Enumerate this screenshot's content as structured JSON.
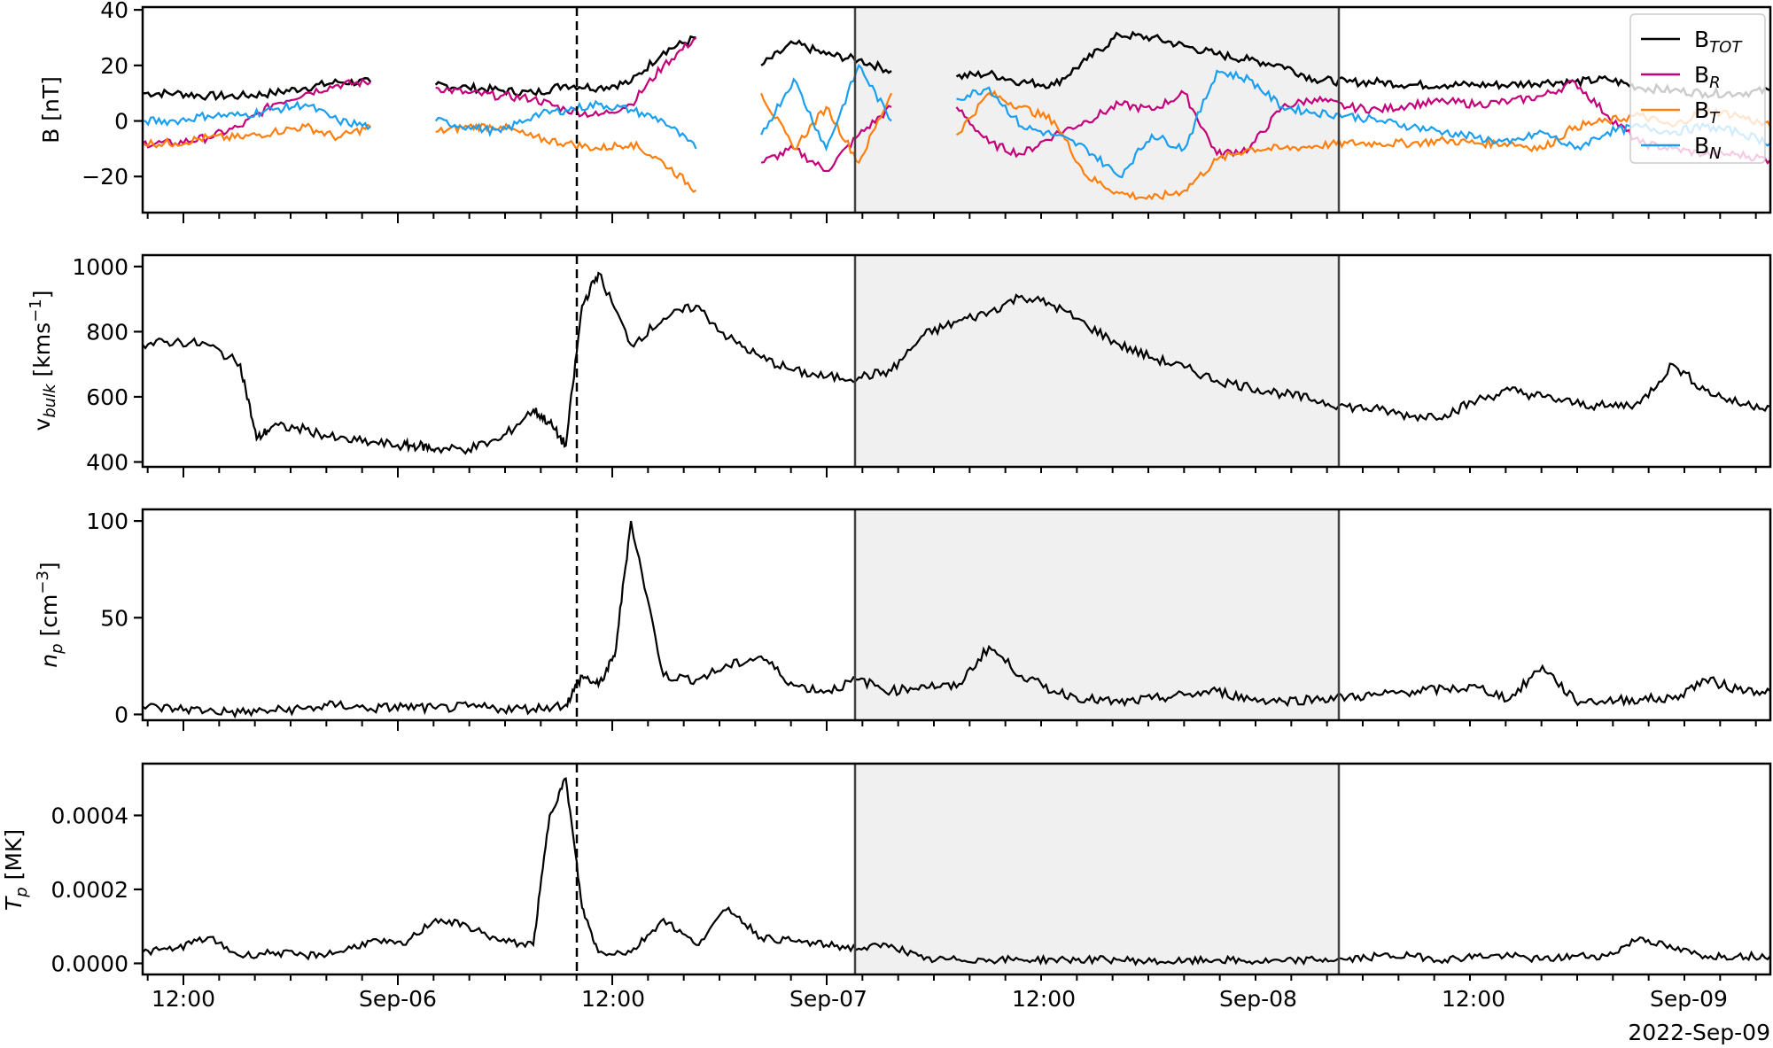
{
  "chart_data": [
    {
      "type": "line",
      "panel": "magnetic-field",
      "ylabel": "B [nT]",
      "ylim": [
        -33,
        41
      ],
      "yticks": [
        -20,
        0,
        20,
        40
      ],
      "ytick_labels": [
        "−20",
        "0",
        "20",
        "40"
      ],
      "legend": {
        "position": "upper right",
        "entries": [
          "B_TOT",
          "B_R",
          "B_T",
          "B_N"
        ]
      },
      "series": [
        {
          "name": "B_TOT",
          "color": "#000000",
          "x": [
            0,
            2,
            4,
            6,
            8,
            10,
            12,
            14,
            16,
            18,
            20,
            22,
            24,
            26,
            28,
            30,
            32,
            34,
            36,
            38,
            40,
            42,
            44,
            46,
            48,
            50,
            52,
            54,
            56,
            58,
            60,
            62,
            64,
            66,
            68,
            70,
            72,
            74,
            76,
            78,
            80,
            82,
            84,
            86,
            88,
            90,
            92,
            94,
            96,
            98,
            100
          ],
          "values": [
            10,
            10,
            9,
            9,
            10,
            12,
            14,
            14,
            null,
            13,
            12,
            11,
            10,
            13,
            12,
            14,
            25,
            30,
            null,
            20,
            28,
            24,
            22,
            18,
            null,
            16,
            17,
            14,
            13,
            22,
            31,
            30,
            27,
            24,
            22,
            20,
            15,
            14,
            14,
            13,
            13,
            13,
            13,
            14,
            14,
            15,
            12,
            11,
            10,
            10,
            11
          ]
        },
        {
          "name": "B_R",
          "color": "#c4007a",
          "x": [
            0,
            2,
            4,
            6,
            8,
            10,
            12,
            14,
            16,
            18,
            20,
            22,
            24,
            26,
            28,
            30,
            32,
            34,
            36,
            38,
            40,
            42,
            44,
            46,
            48,
            50,
            52,
            54,
            56,
            58,
            60,
            62,
            64,
            66,
            68,
            70,
            72,
            74,
            76,
            78,
            80,
            82,
            84,
            86,
            88,
            90,
            92,
            94,
            96,
            98,
            100
          ],
          "values": [
            -8,
            -8,
            -6,
            -2,
            6,
            10,
            13,
            14,
            null,
            12,
            10,
            9,
            8,
            4,
            2,
            6,
            20,
            30,
            null,
            -15,
            -10,
            -18,
            -5,
            5,
            null,
            5,
            -8,
            -12,
            -5,
            0,
            6,
            4,
            10,
            -12,
            -10,
            5,
            8,
            5,
            4,
            6,
            7,
            6,
            7,
            9,
            14,
            2,
            -8,
            -10,
            -12,
            -12,
            -14
          ]
        },
        {
          "name": "B_T",
          "color": "#ff7f0e",
          "x": [
            0,
            2,
            4,
            6,
            8,
            10,
            12,
            14,
            16,
            18,
            20,
            22,
            24,
            26,
            28,
            30,
            32,
            34,
            36,
            38,
            40,
            42,
            44,
            46,
            48,
            50,
            52,
            54,
            56,
            58,
            60,
            62,
            64,
            66,
            68,
            70,
            72,
            74,
            76,
            78,
            80,
            82,
            84,
            86,
            88,
            90,
            92,
            94,
            96,
            98,
            100
          ],
          "values": [
            -8,
            -8,
            -6,
            -6,
            -4,
            -2,
            -6,
            -2,
            null,
            -4,
            -2,
            -2,
            -6,
            -8,
            -10,
            -8,
            -15,
            -25,
            null,
            10,
            -10,
            5,
            -15,
            10,
            null,
            -5,
            10,
            5,
            0,
            -20,
            -26,
            -28,
            -25,
            -14,
            -10,
            -10,
            -9,
            -8,
            -8,
            -8,
            -7,
            -8,
            -8,
            -10,
            -2,
            0,
            2,
            -2,
            4,
            2,
            -2
          ]
        },
        {
          "name": "B_N",
          "color": "#1a9ff0",
          "x": [
            0,
            2,
            4,
            6,
            8,
            10,
            12,
            14,
            16,
            18,
            20,
            22,
            24,
            26,
            28,
            30,
            32,
            34,
            36,
            38,
            40,
            42,
            44,
            46,
            48,
            50,
            52,
            54,
            56,
            58,
            60,
            62,
            64,
            66,
            68,
            70,
            72,
            74,
            76,
            78,
            80,
            82,
            84,
            86,
            88,
            90,
            92,
            94,
            96,
            98,
            100
          ],
          "values": [
            0,
            0,
            2,
            2,
            4,
            6,
            0,
            -2,
            null,
            0,
            -2,
            -4,
            2,
            4,
            6,
            4,
            0,
            -10,
            null,
            -5,
            15,
            -10,
            20,
            0,
            null,
            8,
            12,
            -2,
            -5,
            -10,
            -20,
            -5,
            -10,
            18,
            15,
            5,
            3,
            2,
            0,
            -2,
            -4,
            -6,
            -8,
            -4,
            -10,
            -4,
            -2,
            -4,
            -2,
            -4,
            -8
          ]
        }
      ]
    },
    {
      "type": "line",
      "panel": "bulk-speed",
      "ylabel": "v_bulk [kms^-1]",
      "ylim": [
        385,
        1035
      ],
      "yticks": [
        400,
        600,
        800,
        1000
      ],
      "ytick_labels": [
        "400",
        "600",
        "800",
        "1000"
      ],
      "series": [
        {
          "name": "v_bulk",
          "color": "#000000",
          "x": [
            0,
            2,
            4,
            6,
            7,
            8,
            10,
            12,
            14,
            16,
            17,
            18,
            20,
            22,
            24,
            25,
            26,
            27,
            28,
            30,
            32,
            34,
            36,
            38,
            40,
            42,
            44,
            46,
            48,
            50,
            52,
            54,
            56,
            58,
            60,
            62,
            64,
            66,
            68,
            70,
            72,
            74,
            76,
            78,
            80,
            82,
            84,
            86,
            88,
            90,
            92,
            94,
            96,
            98,
            100
          ],
          "values": [
            760,
            770,
            760,
            700,
            470,
            510,
            500,
            470,
            460,
            450,
            450,
            440,
            440,
            470,
            560,
            520,
            450,
            880,
            980,
            760,
            840,
            880,
            780,
            720,
            680,
            660,
            660,
            680,
            790,
            830,
            860,
            910,
            880,
            820,
            760,
            720,
            690,
            650,
            630,
            610,
            590,
            570,
            560,
            540,
            545,
            590,
            620,
            600,
            580,
            570,
            580,
            700,
            620,
            580,
            570
          ]
        }
      ]
    },
    {
      "type": "line",
      "panel": "proton-density",
      "ylabel": "n_p [cm^-3]",
      "ylim": [
        -3,
        106
      ],
      "yticks": [
        0,
        50,
        100
      ],
      "ytick_labels": [
        "0",
        "50",
        "100"
      ],
      "series": [
        {
          "name": "n_p",
          "color": "#000000",
          "x": [
            0,
            2,
            4,
            6,
            8,
            10,
            12,
            14,
            16,
            18,
            20,
            22,
            24,
            26,
            27,
            28,
            29,
            30,
            32,
            34,
            36,
            38,
            40,
            42,
            44,
            46,
            48,
            50,
            52,
            54,
            56,
            58,
            60,
            62,
            64,
            66,
            68,
            70,
            72,
            74,
            76,
            78,
            80,
            82,
            84,
            86,
            88,
            90,
            92,
            94,
            96,
            98,
            100
          ],
          "values": [
            4,
            3,
            2,
            1,
            2,
            3,
            5,
            3,
            4,
            3,
            4,
            3,
            3,
            5,
            20,
            15,
            30,
            100,
            20,
            18,
            25,
            30,
            15,
            12,
            18,
            12,
            15,
            14,
            35,
            20,
            12,
            8,
            6,
            8,
            10,
            12,
            8,
            7,
            8,
            9,
            10,
            12,
            13,
            14,
            8,
            25,
            7,
            7,
            8,
            8,
            18,
            13,
            12
          ]
        }
      ]
    },
    {
      "type": "line",
      "panel": "proton-temperature",
      "ylabel": "T_p [MK]",
      "ylim": [
        -3e-05,
        0.00054
      ],
      "yticks": [
        0.0,
        0.0002,
        0.0004
      ],
      "ytick_labels": [
        "0.0000",
        "0.0002",
        "0.0004"
      ],
      "series": [
        {
          "name": "T_p",
          "color": "#000000",
          "x": [
            0,
            2,
            4,
            6,
            8,
            10,
            12,
            14,
            16,
            18,
            20,
            22,
            24,
            25,
            26,
            27,
            28,
            30,
            32,
            34,
            36,
            38,
            40,
            42,
            44,
            46,
            48,
            50,
            52,
            54,
            56,
            58,
            60,
            62,
            64,
            66,
            68,
            70,
            72,
            74,
            76,
            78,
            80,
            82,
            84,
            86,
            88,
            90,
            92,
            94,
            96,
            98,
            100
          ],
          "values": [
            3e-05,
            4e-05,
            7e-05,
            2e-05,
            3e-05,
            2e-05,
            3e-05,
            6e-05,
            5e-05,
            0.00012,
            0.0001,
            6e-05,
            5e-05,
            0.0004,
            0.0005,
            0.00015,
            3e-05,
            3e-05,
            0.00012,
            5e-05,
            0.00015,
            7e-05,
            6e-05,
            5e-05,
            4e-05,
            5e-05,
            1e-05,
            1e-05,
            1e-05,
            1e-05,
            1e-05,
            1e-05,
            1e-05,
            5e-06,
            5e-06,
            1e-05,
            5e-06,
            5e-06,
            1e-05,
            1e-05,
            2e-05,
            2e-05,
            1e-05,
            2e-05,
            2e-05,
            1e-05,
            2e-05,
            2e-05,
            7e-05,
            4e-05,
            2e-05,
            2e-05,
            2e-05
          ]
        }
      ]
    }
  ],
  "x_axis": {
    "tick_labels": [
      "12:00",
      "Sep-06",
      "12:00",
      "Sep-07",
      "12:00",
      "Sep-08",
      "12:00",
      "Sep-09"
    ],
    "offset_label": "2022-Sep-09",
    "range": "2022-Sep-05 ~09:45 to 2022-Sep-09 ~04:30"
  },
  "annotations": {
    "dashed_vline": "shock arrival, 2022-Sep-06 ~10:30",
    "shaded_region": "2022-Sep-07 ~01:00 to 2022-Sep-08 ~03:30",
    "shade_color": "#f0f0f0"
  },
  "legend_labels": {
    "btot_main": "B",
    "btot_sub": "TOT",
    "br_main": "B",
    "br_sub": "R",
    "bt_main": "B",
    "bt_sub": "T",
    "bn_main": "B",
    "bn_sub": "N"
  },
  "ylabels": {
    "b": "B [nT]",
    "v_main": "v",
    "v_sub": "bulk",
    "v_unit": " [kms",
    "v_exp": "−1",
    "v_close": "]",
    "n_main": "n",
    "n_sub": "p",
    "n_unit": " [cm",
    "n_exp": "−3",
    "n_close": "]",
    "t_main": "T",
    "t_sub": "p",
    "t_unit": " [MK]"
  }
}
